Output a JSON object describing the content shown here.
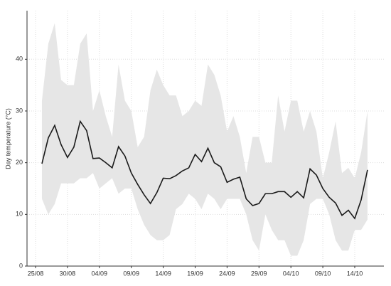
{
  "chart_data": {
    "type": "line",
    "ylabel": "Day temperature (°C)",
    "categories": [
      "25/08",
      null,
      null,
      null,
      null,
      "30/08",
      null,
      null,
      null,
      null,
      "04/09",
      null,
      null,
      null,
      null,
      "09/09",
      null,
      null,
      null,
      null,
      "14/09",
      null,
      null,
      null,
      null,
      "19/09",
      null,
      null,
      null,
      null,
      "24/09",
      null,
      null,
      null,
      null,
      "29/09",
      null,
      null,
      null,
      null,
      "04/10",
      null,
      null,
      null,
      null,
      "09/10",
      null,
      null,
      null,
      null,
      "14/10",
      null,
      null
    ],
    "values": [
      null,
      19.8,
      24.8,
      27.2,
      23.5,
      21,
      23,
      28,
      26.2,
      20.8,
      20.9,
      20,
      19,
      23.1,
      21.3,
      18,
      15.8,
      13.8,
      12.1,
      14.2,
      17,
      16.9,
      17.5,
      18.4,
      19,
      21.6,
      20.2,
      22.8,
      20,
      19.2,
      16.2,
      16.8,
      17.2,
      13,
      11.7,
      12.1,
      14,
      14,
      14.4,
      14.4,
      13.3,
      14.4,
      13.2,
      18.8,
      17.6,
      15,
      13.3,
      12.2,
      9.8,
      10.8,
      9.2,
      12.8,
      18.6
    ],
    "upper": [
      null,
      32,
      43,
      47,
      36,
      35,
      35,
      43,
      45,
      30,
      34,
      29,
      25,
      39,
      32,
      30,
      23,
      25,
      34,
      38,
      35,
      33,
      33,
      29,
      30,
      32,
      31,
      39,
      37,
      33,
      26,
      29,
      25,
      18,
      25,
      25,
      20,
      20,
      33,
      26,
      32,
      32,
      26,
      30,
      26,
      17,
      22,
      28,
      18,
      19,
      17,
      22,
      30
    ],
    "lower": [
      null,
      13,
      10,
      12,
      16,
      16,
      16,
      17,
      17,
      18,
      15,
      16,
      17,
      14,
      15,
      15,
      11,
      8,
      6,
      5,
      5,
      6,
      11,
      12,
      14,
      13,
      11,
      14,
      13,
      11,
      13,
      13,
      13,
      10,
      5,
      3,
      10,
      7,
      5,
      5,
      2,
      2,
      5,
      12,
      13,
      13,
      10,
      5,
      3,
      3,
      7,
      7,
      9
    ],
    "color": "#1a1a1a",
    "band_color": "#e6e6e6",
    "ylim": [
      0,
      49.4
    ],
    "yticks": [
      0,
      10,
      20,
      30,
      40
    ],
    "grid": true
  }
}
